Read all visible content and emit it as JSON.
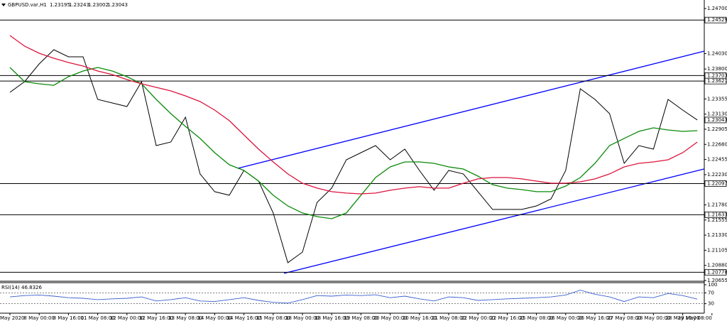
{
  "chart_data": {
    "type": "line",
    "title": "GBPUSD.var,H1",
    "quote": [
      1.23195,
      1.23243,
      1.23002,
      1.23043
    ],
    "categories": [
      "May 2020",
      null,
      "8 May 00:00",
      null,
      "8 May 16:00",
      null,
      "11 May 08:00",
      null,
      "12 May 00:00",
      null,
      "12 May 16:00",
      null,
      "13 May 08:00",
      null,
      "14 May 00:00",
      null,
      "14 May 16:00",
      null,
      "15 May 08:00",
      null,
      "18 May 00:00",
      null,
      "18 May 16:00",
      null,
      "19 May 08:00",
      null,
      "20 May 00:00",
      null,
      "20 May 16:00",
      null,
      "21 May 08:00",
      null,
      "22 May 00:00",
      null,
      "22 May 16:00",
      null,
      "25 May 08:00",
      null,
      "26 May 00:00",
      null,
      "26 May 16:00",
      null,
      "27 May 08:00",
      null,
      "28 May 00:00",
      null,
      "28 May 16:00",
      null,
      "29 May 08:00"
    ],
    "series": [
      {
        "color": "#000000",
        "values": [
          1.23454,
          1.23612,
          1.23876,
          1.24088,
          1.23982,
          1.23982,
          1.23348,
          1.23296,
          1.23243,
          1.23612,
          1.22662,
          1.22715,
          1.23084,
          1.2224,
          1.21976,
          1.21923,
          1.22292,
          1.22134,
          1.21659,
          1.2092,
          1.21078,
          1.21817,
          1.22029,
          1.22451,
          1.22556,
          1.22662,
          1.22451,
          1.22609,
          1.22292,
          1.21997,
          1.22292,
          1.2224,
          1.21976,
          1.21712,
          1.21712,
          1.21712,
          1.21764,
          1.2187,
          1.22292,
          1.23507,
          1.23348,
          1.23137,
          1.22398,
          1.22662,
          1.22609,
          1.23348,
          1.2319,
          1.23043,
          null
        ]
      },
      {
        "color": "#0a8a0a",
        "values": [
          1.23824,
          1.23612,
          1.23581,
          1.23559,
          1.23686,
          1.23771,
          1.23824,
          1.23771,
          1.23686,
          1.23581,
          1.23348,
          1.23137,
          1.22947,
          1.22768,
          1.22556,
          1.22377,
          1.22292,
          1.22134,
          1.21923,
          1.21764,
          1.21659,
          1.21606,
          1.21574,
          1.21659,
          1.21923,
          1.22187,
          1.22345,
          1.22419,
          1.22419,
          1.22398,
          1.22345,
          1.22313,
          1.22208,
          1.22081,
          1.22029,
          1.22007,
          1.21976,
          1.21976,
          1.2206,
          1.22187,
          1.22398,
          1.22662,
          1.22768,
          1.22873,
          1.22926,
          1.22894,
          1.22873,
          1.22884,
          null
        ]
      },
      {
        "color": "#dc143c",
        "values": [
          1.24299,
          1.2414,
          1.24035,
          1.23961,
          1.23898,
          1.23845,
          1.23771,
          1.23718,
          1.23644,
          1.23581,
          1.23528,
          1.23475,
          1.23401,
          1.23317,
          1.2319,
          1.23032,
          1.2282,
          1.22609,
          1.22419,
          1.2224,
          1.22102,
          1.22029,
          1.21976,
          1.21955,
          1.21944,
          1.21955,
          1.21997,
          1.22029,
          1.2205,
          1.22029,
          1.22029,
          1.22102,
          1.22166,
          1.22187,
          1.22187,
          1.22166,
          1.22134,
          1.22102,
          1.22102,
          1.22123,
          1.22166,
          1.2224,
          1.22345,
          1.22398,
          1.22419,
          1.22451,
          1.22556,
          1.22715,
          null
        ]
      }
    ],
    "ylim": [
      1.20655,
      1.24827
    ],
    "yticks": [
      {
        "value": 1.247,
        "label": "1.24700"
      },
      {
        "value": 1.2403,
        "label": "1.24030"
      },
      {
        "value": 1.238,
        "label": "1.23800"
      },
      1.23355,
      {
        "value": 1.2313,
        "label": "1.23130"
      },
      1.22905,
      {
        "value": 1.2268,
        "label": "1.22680"
      },
      1.22455,
      {
        "value": 1.2223,
        "label": "1.22230"
      },
      {
        "value": 1.2178,
        "label": "1.21780"
      },
      1.21555,
      {
        "value": 1.2133,
        "label": "1.21330"
      },
      1.21105,
      {
        "value": 1.2088,
        "label": "1.20880"
      },
      1.20655
    ],
    "levels": [
      1.24529,
      1.23703,
      1.23621,
      1.22097,
      1.21633,
      1.20778
    ],
    "level_color": "#000000",
    "channel": {
      "color": "#0000ff",
      "upper": [
        1.22324,
        1.24066
      ],
      "lower": [
        1.20762,
        1.22314
      ]
    },
    "rsi": {
      "label": "RSI(14)",
      "value": 46.8326,
      "color": "#3a5fcd",
      "ylim": [
        0,
        100
      ],
      "yticks": [
        30,
        70,
        100
      ],
      "levels": [
        30,
        70
      ],
      "values": [
        55,
        60,
        62,
        58,
        52,
        50,
        45,
        48,
        50,
        55,
        40,
        45,
        52,
        40,
        38,
        45,
        52,
        42,
        35,
        32,
        45,
        60,
        58,
        62,
        60,
        63,
        52,
        58,
        48,
        40,
        55,
        52,
        42,
        45,
        48,
        50,
        52,
        55,
        62,
        80,
        65,
        55,
        38,
        55,
        52,
        68,
        60,
        46.8326,
        null
      ]
    }
  }
}
